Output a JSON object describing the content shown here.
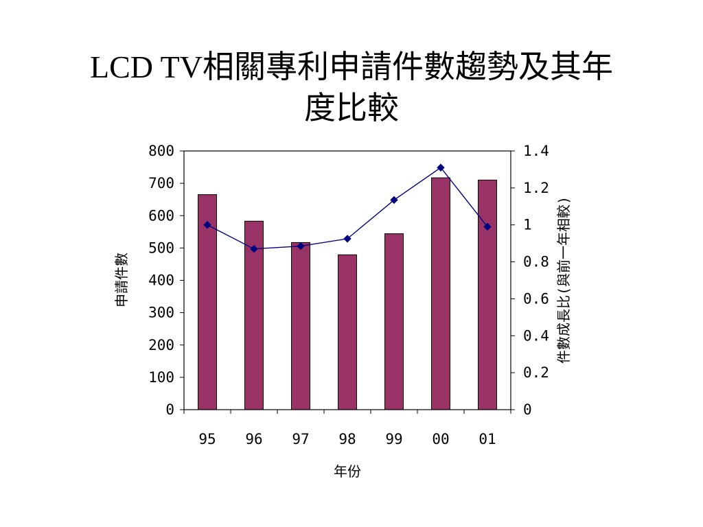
{
  "slide": {
    "title_line1": "LCD TV相關專利申請件數趨勢及其年",
    "title_line2": "度比較"
  },
  "colors": {
    "bar_fill": "#993366",
    "bar_stroke": "#000000",
    "line": "#000080",
    "marker": "#000080",
    "axis": "#000000"
  },
  "chart_data": {
    "type": "bar",
    "combo": "bar+line (secondary axis)",
    "title": "",
    "categories": [
      "95",
      "96",
      "97",
      "98",
      "99",
      "00",
      "01"
    ],
    "xlabel": "年份",
    "ylabel": "申請件數",
    "y2label": "件數成長比(與前一年相較)",
    "ylim": [
      0,
      800
    ],
    "y2lim": [
      0,
      1.4
    ],
    "yticks": [
      "0",
      "100",
      "200",
      "300",
      "400",
      "500",
      "600",
      "700",
      "800"
    ],
    "y2ticks": [
      "0",
      "0.2",
      "0.4",
      "0.6",
      "0.8",
      "1",
      "1.2",
      "1.4"
    ],
    "grid": false,
    "legend": "none",
    "series": [
      {
        "kind": "bar",
        "axis": "primary",
        "values": [
          665,
          583,
          517,
          479,
          544,
          717,
          710
        ]
      },
      {
        "kind": "line",
        "axis": "secondary",
        "marker": "diamond",
        "values": [
          1.0,
          0.87,
          0.885,
          0.925,
          1.135,
          1.31,
          0.99
        ]
      }
    ]
  }
}
